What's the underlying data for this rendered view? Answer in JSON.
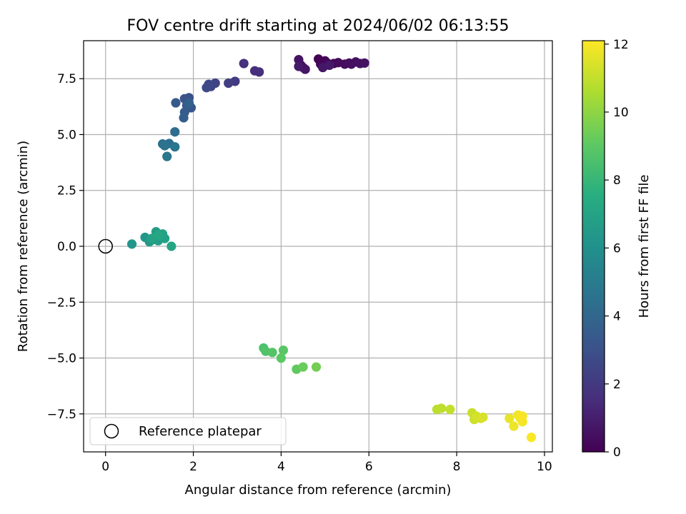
{
  "chart_data": {
    "type": "scatter",
    "title": "FOV centre drift starting at 2024/06/02 06:13:55",
    "xlabel": "Angular distance from reference (arcmin)",
    "ylabel": "Rotation from reference (arcmin)",
    "colorbar_label": "Hours from first FF file",
    "colormap": "viridis",
    "xlim": [
      -0.5,
      10.18
    ],
    "ylim": [
      -9.2,
      9.2
    ],
    "xticks": [
      0,
      2,
      4,
      6,
      8,
      10
    ],
    "yticks": [
      -7.5,
      -5.0,
      -2.5,
      0.0,
      2.5,
      5.0,
      7.5
    ],
    "ytick_labels": [
      "−7.5",
      "−5.0",
      "−2.5",
      "0.0",
      "2.5",
      "5.0",
      "7.5"
    ],
    "cbar_ticks": [
      0,
      2,
      4,
      6,
      8,
      10,
      12
    ],
    "cbar_range": [
      0,
      12.1
    ],
    "grid": true,
    "legend": {
      "label": "Reference platepar",
      "location": "lower-left"
    },
    "reference_point": {
      "x": 0,
      "y": 0
    },
    "series": [
      {
        "points": [
          {
            "x": 4.45,
            "y": 8.1,
            "c": 0.0
          },
          {
            "x": 4.85,
            "y": 8.38,
            "c": 0.05
          },
          {
            "x": 4.9,
            "y": 8.15,
            "c": 0.1
          },
          {
            "x": 5.0,
            "y": 8.3,
            "c": 0.15
          },
          {
            "x": 5.05,
            "y": 8.2,
            "c": 0.2
          },
          {
            "x": 5.2,
            "y": 8.18,
            "c": 0.25
          },
          {
            "x": 5.3,
            "y": 8.22,
            "c": 0.3
          },
          {
            "x": 5.45,
            "y": 8.15,
            "c": 0.35
          },
          {
            "x": 5.55,
            "y": 8.2,
            "c": 0.4
          },
          {
            "x": 5.6,
            "y": 8.15,
            "c": 0.45
          },
          {
            "x": 5.7,
            "y": 8.25,
            "c": 0.5
          },
          {
            "x": 5.8,
            "y": 8.18,
            "c": 0.55
          },
          {
            "x": 5.9,
            "y": 8.2,
            "c": 0.6
          },
          {
            "x": 4.4,
            "y": 8.35,
            "c": 0.62
          },
          {
            "x": 4.5,
            "y": 8.0,
            "c": 0.65
          },
          {
            "x": 4.55,
            "y": 7.92,
            "c": 0.7
          },
          {
            "x": 4.95,
            "y": 8.0,
            "c": 0.75
          },
          {
            "x": 5.1,
            "y": 8.1,
            "c": 0.8
          },
          {
            "x": 4.4,
            "y": 8.05,
            "c": 0.85
          },
          {
            "x": 3.4,
            "y": 7.85,
            "c": 1.5
          },
          {
            "x": 3.5,
            "y": 7.8,
            "c": 1.6
          },
          {
            "x": 3.15,
            "y": 8.18,
            "c": 1.7
          },
          {
            "x": 2.95,
            "y": 7.38,
            "c": 2.1
          },
          {
            "x": 2.8,
            "y": 7.3,
            "c": 2.2
          },
          {
            "x": 2.5,
            "y": 7.3,
            "c": 2.4
          },
          {
            "x": 2.4,
            "y": 7.15,
            "c": 2.5
          },
          {
            "x": 2.35,
            "y": 7.25,
            "c": 2.6
          },
          {
            "x": 2.3,
            "y": 7.1,
            "c": 2.7
          },
          {
            "x": 1.9,
            "y": 6.65,
            "c": 3.0
          },
          {
            "x": 1.8,
            "y": 6.6,
            "c": 3.1
          },
          {
            "x": 1.95,
            "y": 6.2,
            "c": 3.2
          },
          {
            "x": 1.85,
            "y": 6.3,
            "c": 3.3
          },
          {
            "x": 1.6,
            "y": 6.42,
            "c": 3.4
          },
          {
            "x": 1.8,
            "y": 6.0,
            "c": 3.5
          },
          {
            "x": 1.78,
            "y": 5.75,
            "c": 3.6
          },
          {
            "x": 1.9,
            "y": 6.4,
            "c": 3.7
          },
          {
            "x": 1.58,
            "y": 5.12,
            "c": 4.3
          },
          {
            "x": 1.45,
            "y": 4.6,
            "c": 4.4
          },
          {
            "x": 1.3,
            "y": 4.58,
            "c": 4.5
          },
          {
            "x": 1.35,
            "y": 4.5,
            "c": 4.6
          },
          {
            "x": 1.58,
            "y": 4.45,
            "c": 4.7
          },
          {
            "x": 1.4,
            "y": 4.02,
            "c": 4.8
          },
          {
            "x": 0.6,
            "y": 0.1,
            "c": 6.3
          },
          {
            "x": 0.9,
            "y": 0.4,
            "c": 6.4
          },
          {
            "x": 1.0,
            "y": 0.2,
            "c": 6.5
          },
          {
            "x": 1.1,
            "y": 0.3,
            "c": 6.6
          },
          {
            "x": 1.15,
            "y": 0.65,
            "c": 6.7
          },
          {
            "x": 1.2,
            "y": 0.25,
            "c": 6.8
          },
          {
            "x": 1.25,
            "y": 0.4,
            "c": 6.85
          },
          {
            "x": 1.3,
            "y": 0.55,
            "c": 6.9
          },
          {
            "x": 1.35,
            "y": 0.35,
            "c": 6.95
          },
          {
            "x": 1.05,
            "y": 0.35,
            "c": 7.0
          },
          {
            "x": 1.5,
            "y": 0.0,
            "c": 7.1
          },
          {
            "x": 1.2,
            "y": 0.5,
            "c": 7.15
          },
          {
            "x": 3.6,
            "y": -4.55,
            "c": 8.6
          },
          {
            "x": 3.65,
            "y": -4.7,
            "c": 8.7
          },
          {
            "x": 3.8,
            "y": -4.75,
            "c": 8.8
          },
          {
            "x": 4.05,
            "y": -4.65,
            "c": 8.9
          },
          {
            "x": 4.0,
            "y": -5.0,
            "c": 9.0
          },
          {
            "x": 4.35,
            "y": -5.5,
            "c": 9.1
          },
          {
            "x": 4.5,
            "y": -5.4,
            "c": 9.3
          },
          {
            "x": 4.8,
            "y": -5.4,
            "c": 9.5
          },
          {
            "x": 7.55,
            "y": -7.3,
            "c": 10.8
          },
          {
            "x": 7.65,
            "y": -7.25,
            "c": 10.9
          },
          {
            "x": 7.85,
            "y": -7.3,
            "c": 11.0
          },
          {
            "x": 8.35,
            "y": -7.45,
            "c": 11.1
          },
          {
            "x": 8.4,
            "y": -7.75,
            "c": 11.2
          },
          {
            "x": 8.45,
            "y": -7.6,
            "c": 11.3
          },
          {
            "x": 8.55,
            "y": -7.7,
            "c": 11.35
          },
          {
            "x": 8.6,
            "y": -7.65,
            "c": 11.4
          },
          {
            "x": 9.2,
            "y": -7.7,
            "c": 11.7
          },
          {
            "x": 9.3,
            "y": -8.05,
            "c": 11.8
          },
          {
            "x": 9.4,
            "y": -7.55,
            "c": 11.85
          },
          {
            "x": 9.45,
            "y": -7.7,
            "c": 11.9
          },
          {
            "x": 9.5,
            "y": -7.85,
            "c": 11.95
          },
          {
            "x": 9.5,
            "y": -7.6,
            "c": 12.0
          },
          {
            "x": 9.7,
            "y": -8.55,
            "c": 12.05
          }
        ]
      }
    ]
  }
}
